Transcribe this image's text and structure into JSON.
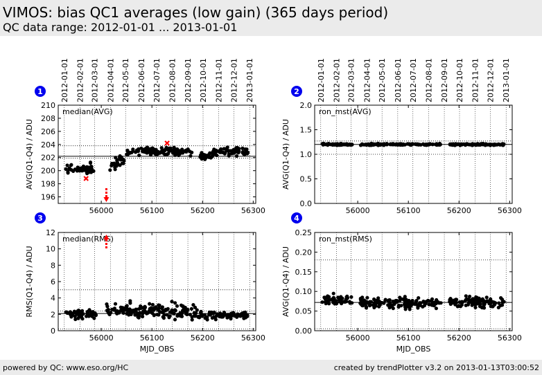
{
  "header": {
    "title": "VIMOS: bias QC1 averages (low gain) (365 days period)",
    "subtitle": "QC data range: 2012-01-01 ... 2013-01-01"
  },
  "footer": {
    "left": "powered by QC: www.eso.org/HC",
    "right": "created by trendPlotter v3.2 on 2013-01-13T03:00:52"
  },
  "colors": {
    "data": "#000000",
    "outlier": "#ff0000",
    "badge": "#0000ee",
    "background": "#ebebeb"
  },
  "chart_data": [
    {
      "type": "scatter",
      "panel": "1",
      "label": "median(AVG)",
      "xlabel": "",
      "ylabel": "AVG(Q1-Q4) / ADU",
      "xlim": [
        55915,
        56305
      ],
      "ylim": [
        195,
        210
      ],
      "yticks": [
        196,
        198,
        200,
        202,
        204,
        206,
        208,
        210
      ],
      "xticks": [
        56000,
        56100,
        56200,
        56300
      ],
      "top_dates": [
        "2012-01-01",
        "2012-02-01",
        "2012-03-01",
        "2012-04-01",
        "2012-05-01",
        "2012-06-01",
        "2012-07-01",
        "2012-08-01",
        "2012-09-01",
        "2012-10-01",
        "2012-11-01",
        "2012-12-01",
        "2013-01-01"
      ],
      "top_mjd": [
        55927,
        55958,
        55987,
        56018,
        56048,
        56079,
        56109,
        56140,
        56171,
        56201,
        56232,
        56262,
        56293
      ],
      "hlines_solid": [
        202.2
      ],
      "hlines_dotted": [
        201.9,
        203.8
      ],
      "outliers": [
        [
          55970,
          198.8
        ],
        [
          56130,
          204.2
        ]
      ],
      "arrows_down": [
        56010
      ],
      "segments": [
        {
          "x": [
            55930,
            55985
          ],
          "mean": 200.3,
          "spread": 0.7
        },
        {
          "x": [
            56015,
            56045
          ],
          "mean": 201.2,
          "spread": 0.8
        },
        {
          "x": [
            56050,
            56100
          ],
          "mean": 203.0,
          "spread": 0.5
        },
        {
          "x": [
            56100,
            56180
          ],
          "mean": 202.9,
          "spread": 0.5
        },
        {
          "x": [
            56195,
            56220
          ],
          "mean": 202.3,
          "spread": 0.5
        },
        {
          "x": [
            56220,
            56290
          ],
          "mean": 202.9,
          "spread": 0.5
        }
      ]
    },
    {
      "type": "scatter",
      "panel": "2",
      "label": "ron_mst(AVG)",
      "xlabel": "",
      "ylabel": "AVG(Q1-Q4) / ADU",
      "xlim": [
        55915,
        56305
      ],
      "ylim": [
        0.0,
        2.0
      ],
      "yticks": [
        0.0,
        0.5,
        1.0,
        1.5,
        2.0
      ],
      "xticks": [
        56000,
        56100,
        56200,
        56300
      ],
      "top_dates": [
        "2012-01-01",
        "2012-02-01",
        "2012-03-01",
        "2012-04-01",
        "2012-05-01",
        "2012-06-01",
        "2012-07-01",
        "2012-08-01",
        "2012-09-01",
        "2012-10-01",
        "2012-11-01",
        "2012-12-01",
        "2013-01-01"
      ],
      "top_mjd": [
        55927,
        55958,
        55987,
        56018,
        56048,
        56079,
        56109,
        56140,
        56171,
        56201,
        56232,
        56262,
        56293
      ],
      "hlines_solid": [
        1.2
      ],
      "hlines_dotted": [
        1.0,
        1.27
      ],
      "outliers": [],
      "arrows_down": [],
      "segments": [
        {
          "x": [
            55930,
            55990
          ],
          "mean": 1.2,
          "spread": 0.015
        },
        {
          "x": [
            56005,
            56165
          ],
          "mean": 1.2,
          "spread": 0.015
        },
        {
          "x": [
            56180,
            56290
          ],
          "mean": 1.2,
          "spread": 0.015
        }
      ]
    },
    {
      "type": "scatter",
      "panel": "3",
      "label": "median(RMS)",
      "xlabel": "MJD_OBS",
      "ylabel": "RMS(Q1-Q4) / ADU",
      "xlim": [
        55915,
        56305
      ],
      "ylim": [
        0,
        12
      ],
      "yticks": [
        0,
        2,
        4,
        6,
        8,
        10,
        12
      ],
      "xticks": [
        56000,
        56100,
        56200,
        56300
      ],
      "top_dates": [],
      "top_mjd": [
        55927,
        55958,
        55987,
        56018,
        56048,
        56079,
        56109,
        56140,
        56171,
        56201,
        56232,
        56262,
        56293
      ],
      "hlines_solid": [
        2.1
      ],
      "hlines_dotted": [
        0.2,
        2.4,
        5.0
      ],
      "outliers": [],
      "arrows_up": [
        56010
      ],
      "segments": [
        {
          "x": [
            55930,
            55990
          ],
          "mean": 2.0,
          "spread": 0.5
        },
        {
          "x": [
            56010,
            56060
          ],
          "mean": 2.6,
          "spread": 0.8
        },
        {
          "x": [
            56060,
            56190
          ],
          "mean": 2.4,
          "spread": 0.8
        },
        {
          "x": [
            56190,
            56290
          ],
          "mean": 1.9,
          "spread": 0.4
        }
      ]
    },
    {
      "type": "scatter",
      "panel": "4",
      "label": "ron_mst(RMS)",
      "xlabel": "MJD_OBS",
      "ylabel": "AVG(Q1-Q4) / ADU",
      "xlim": [
        55915,
        56305
      ],
      "ylim": [
        0.0,
        0.25
      ],
      "yticks": [
        0.0,
        0.05,
        0.1,
        0.15,
        0.2,
        0.25
      ],
      "xticks": [
        56000,
        56100,
        56200,
        56300
      ],
      "top_dates": [],
      "top_mjd": [
        55927,
        55958,
        55987,
        56018,
        56048,
        56079,
        56109,
        56140,
        56171,
        56201,
        56232,
        56262,
        56293
      ],
      "hlines_solid": [
        0.072
      ],
      "hlines_dotted": [
        0.005,
        0.18
      ],
      "outliers": [],
      "arrows_down": [],
      "segments": [
        {
          "x": [
            55930,
            55990
          ],
          "mean": 0.078,
          "spread": 0.012
        },
        {
          "x": [
            56005,
            56165
          ],
          "mean": 0.07,
          "spread": 0.013
        },
        {
          "x": [
            56180,
            56290
          ],
          "mean": 0.072,
          "spread": 0.012
        }
      ]
    }
  ]
}
